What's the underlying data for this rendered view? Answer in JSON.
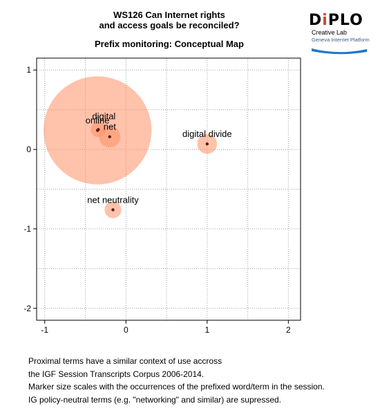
{
  "header": {
    "title_line1": "WS126 Can Internet rights",
    "title_line2": "and access goals be reconciled?",
    "subtitle": "Prefix monitoring: Conceptual Map"
  },
  "logo": {
    "word_d": "D",
    "word_i": "i",
    "word_rest": "PLO",
    "line1": "Creative Lab",
    "line2": "Geneva Internet Platform",
    "colors": {
      "accent": "#d2452a",
      "blue": "#1f78c8"
    }
  },
  "chart_data": {
    "type": "scatter",
    "xlim": [
      -1.1,
      2.15
    ],
    "ylim": [
      -2.15,
      1.15
    ],
    "xticks": [
      -1,
      0,
      1,
      2
    ],
    "yticks": [
      -2,
      -1,
      0,
      1
    ],
    "tick_labels_x": [
      "-1",
      "0",
      "1",
      "2"
    ],
    "tick_labels_y": [
      "-2",
      "-1",
      "0",
      "1"
    ],
    "grid": true,
    "points": [
      {
        "label": "online",
        "x": -0.35,
        "y": 0.24,
        "occurrence": 7.1
      },
      {
        "label": "digital",
        "x": -0.34,
        "y": 0.25,
        "occurrence": 1.0
      },
      {
        "label": "net",
        "x": -0.2,
        "y": 0.16,
        "occurrence": 1.4
      },
      {
        "label": "digital divide",
        "x": 1.0,
        "y": 0.07,
        "occurrence": 1.3
      },
      {
        "label": "net neutrality",
        "x": -0.16,
        "y": -0.76,
        "occurrence": 1.1
      }
    ],
    "colors": {
      "bubble": "#ff8f66",
      "dot": "#5a1f10",
      "grid": "#9e9e9e"
    }
  },
  "caption": {
    "line1": "Proximal terms have a similar context of use accross",
    "line2": "the IGF Session Transcripts Corpus 2006-2014.",
    "line3": "Marker size scales with the occurrences of the prefixed word/term in the session.",
    "line4": "IG policy-neutral terms (e.g. \"networking\" and similar) are supressed."
  }
}
